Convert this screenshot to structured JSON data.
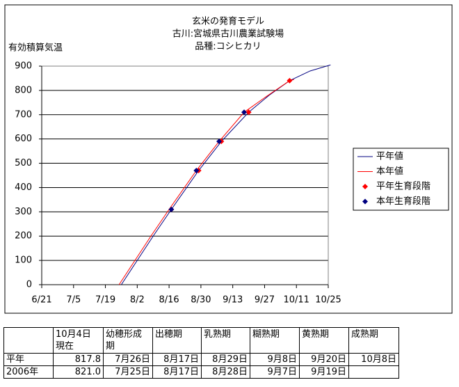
{
  "chart_data": {
    "type": "line",
    "title": [
      "玄米の発育モデル",
      "古川:宮城県古川農業試験場",
      "品種:コシヒカリ"
    ],
    "ylabel": "有効積算気温",
    "xlim": [
      172,
      298
    ],
    "xticks": [
      {
        "value": 172,
        "label": "6/21"
      },
      {
        "value": 186,
        "label": "7/5"
      },
      {
        "value": 200,
        "label": "7/19"
      },
      {
        "value": 214,
        "label": "8/2"
      },
      {
        "value": 228,
        "label": "8/16"
      },
      {
        "value": 242,
        "label": "8/30"
      },
      {
        "value": 256,
        "label": "9/13"
      },
      {
        "value": 270,
        "label": "9/27"
      },
      {
        "value": 284,
        "label": "10/11"
      },
      {
        "value": 298,
        "label": "10/25"
      }
    ],
    "ylim": [
      0,
      900
    ],
    "yticks": [
      0,
      100,
      200,
      300,
      400,
      500,
      600,
      700,
      800,
      900
    ],
    "grid": true,
    "series": [
      {
        "name": "平年値",
        "color": "#000080",
        "style": "line",
        "x": [
          207,
          214,
          221,
          229,
          241,
          251,
          263,
          272,
          281,
          290,
          299
        ],
        "values": [
          0,
          100,
          200,
          310,
          470,
          590,
          710,
          780,
          840,
          880,
          905
        ]
      },
      {
        "name": "本年値",
        "color": "#ff0000",
        "style": "line",
        "x": [
          206,
          213,
          220,
          228,
          240,
          250,
          261,
          270,
          281,
          283
        ],
        "values": [
          0,
          100,
          200,
          310,
          470,
          590,
          710,
          770,
          840,
          845
        ]
      },
      {
        "name": "平年生育段階",
        "color": "#ff0000",
        "style": "marker",
        "x": [
          229,
          241,
          251,
          263,
          281
        ],
        "values": [
          310,
          470,
          590,
          710,
          840
        ]
      },
      {
        "name": "本年生育段階",
        "color": "#000080",
        "style": "marker",
        "x": [
          229,
          240,
          250,
          261
        ],
        "values": [
          310,
          470,
          590,
          710
        ]
      }
    ]
  },
  "table": {
    "rows": [
      [
        null,
        "10月4日\n現在",
        "幼穂形成期",
        "出穂期",
        "乳熟期",
        "糊熟期",
        "黄熟期",
        "成熟期"
      ],
      [
        "平年",
        "817.8",
        "7月26日",
        "8月17日",
        "8月29日",
        "9月8日",
        "9月20日",
        "10月8日"
      ],
      [
        "2006年",
        "821.0",
        "7月25日",
        "8月17日",
        "8月28日",
        "9月7日",
        "9月19日",
        null
      ]
    ]
  }
}
